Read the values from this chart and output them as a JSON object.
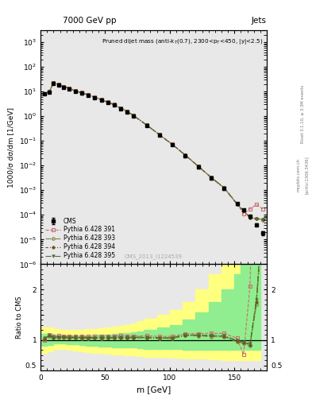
{
  "title_top": "7000 GeV pp",
  "title_right": "Jets",
  "annotation": "Pruned dijet mass (anti-k$_\\mathregular{T}$(0.7), 2300<p$_\\mathregular{T}$<450, |y|<2.5)",
  "watermark": "CMS_2013_I1224539",
  "rivet_label": "Rivet 3.1.10, ≥ 3.3M events",
  "arxiv_label": "[arXiv:1306.3436]",
  "mcplots_label": "mcplots.cern.ch",
  "ylabel_main": "1000/σ dσ/dm [1/GeV]",
  "ylabel_ratio": "Ratio to CMS",
  "xlabel": "m [GeV]",
  "cms_x": [
    3,
    7,
    10,
    14,
    18,
    22,
    27,
    32,
    37,
    42,
    47,
    52,
    57,
    62,
    67,
    72,
    82,
    92,
    102,
    112,
    122,
    132,
    142,
    152,
    157,
    162,
    167,
    172
  ],
  "cms_y": [
    8.0,
    9.5,
    22.0,
    18.0,
    15.0,
    13.0,
    10.0,
    8.5,
    7.0,
    5.5,
    4.5,
    3.5,
    2.8,
    2.0,
    1.5,
    1.0,
    0.42,
    0.17,
    0.068,
    0.024,
    0.0085,
    0.003,
    0.00115,
    0.00028,
    0.000155,
    8.5e-05,
    4e-05,
    1.8e-05
  ],
  "cms_yerr": [
    0.6,
    0.7,
    1.5,
    1.4,
    1.2,
    1.0,
    0.85,
    0.7,
    0.55,
    0.42,
    0.35,
    0.28,
    0.22,
    0.16,
    0.12,
    0.08,
    0.033,
    0.013,
    0.005,
    0.002,
    0.0007,
    0.00025,
    0.0001,
    2.5e-05,
    1.5e-05,
    1e-05,
    5e-06,
    3e-06
  ],
  "py391_x": [
    3,
    7,
    10,
    14,
    18,
    22,
    27,
    32,
    37,
    42,
    47,
    52,
    57,
    62,
    67,
    72,
    82,
    92,
    102,
    112,
    122,
    132,
    142,
    152,
    157,
    162,
    167,
    172
  ],
  "py391_y": [
    8.0,
    10.5,
    23.5,
    19.5,
    16.2,
    14.0,
    10.8,
    9.1,
    7.5,
    5.9,
    4.85,
    3.78,
    3.02,
    2.17,
    1.62,
    1.08,
    0.455,
    0.182,
    0.073,
    0.027,
    0.0096,
    0.0034,
    0.0013,
    0.00029,
    0.00011,
    0.000175,
    0.00026,
    0.000175
  ],
  "py393_x": [
    3,
    7,
    10,
    14,
    18,
    22,
    27,
    32,
    37,
    42,
    47,
    52,
    57,
    62,
    67,
    72,
    82,
    92,
    102,
    112,
    122,
    132,
    142,
    152,
    157,
    162,
    167,
    172
  ],
  "py393_y": [
    8.2,
    10.2,
    22.8,
    18.8,
    15.6,
    13.5,
    10.4,
    8.8,
    7.2,
    5.7,
    4.65,
    3.63,
    2.9,
    2.08,
    1.56,
    1.04,
    0.437,
    0.175,
    0.07,
    0.026,
    0.0092,
    0.0032,
    0.00122,
    0.00027,
    0.000145,
    7.5e-05,
    6.8e-05,
    6.2e-05
  ],
  "py394_x": [
    3,
    7,
    10,
    14,
    18,
    22,
    27,
    32,
    37,
    42,
    47,
    52,
    57,
    62,
    67,
    72,
    82,
    92,
    102,
    112,
    122,
    132,
    142,
    152,
    157,
    162,
    167,
    172
  ],
  "py394_y": [
    8.1,
    10.3,
    23.0,
    19.0,
    15.8,
    13.6,
    10.5,
    8.9,
    7.3,
    5.75,
    4.7,
    3.66,
    2.93,
    2.1,
    1.57,
    1.05,
    0.441,
    0.177,
    0.0708,
    0.0263,
    0.0093,
    0.00325,
    0.00123,
    0.000274,
    0.000148,
    7.7e-05,
    7e-05,
    6.4e-05
  ],
  "py395_x": [
    3,
    7,
    10,
    14,
    18,
    22,
    27,
    32,
    37,
    42,
    47,
    52,
    57,
    62,
    67,
    72,
    82,
    92,
    102,
    112,
    122,
    132,
    142,
    152,
    157,
    162,
    167,
    172
  ],
  "py395_y": [
    8.3,
    10.4,
    23.2,
    19.2,
    16.0,
    13.7,
    10.6,
    8.95,
    7.35,
    5.78,
    4.73,
    3.69,
    2.95,
    2.12,
    1.58,
    1.06,
    0.444,
    0.178,
    0.0712,
    0.0265,
    0.00935,
    0.00328,
    0.00125,
    0.000278,
    0.00015,
    7.9e-05,
    7.2e-05,
    6.6e-05
  ],
  "band_x_edges": [
    0,
    5,
    10,
    15,
    20,
    25,
    30,
    35,
    40,
    45,
    50,
    55,
    60,
    65,
    70,
    75,
    80,
    90,
    100,
    110,
    120,
    130,
    140,
    150,
    155,
    160,
    165,
    170,
    175
  ],
  "band_green_lo": [
    0.88,
    0.9,
    0.93,
    0.93,
    0.92,
    0.91,
    0.9,
    0.89,
    0.88,
    0.87,
    0.87,
    0.86,
    0.86,
    0.85,
    0.85,
    0.84,
    0.83,
    0.83,
    0.82,
    0.81,
    0.81,
    0.81,
    0.8,
    0.8,
    0.8,
    0.8,
    0.8,
    0.8
  ],
  "band_green_hi": [
    1.12,
    1.12,
    1.1,
    1.09,
    1.09,
    1.09,
    1.09,
    1.09,
    1.1,
    1.1,
    1.11,
    1.12,
    1.13,
    1.14,
    1.15,
    1.17,
    1.2,
    1.25,
    1.3,
    1.4,
    1.55,
    1.75,
    2.0,
    2.3,
    2.5,
    2.6,
    2.6,
    2.6
  ],
  "band_yellow_lo": [
    0.75,
    0.78,
    0.82,
    0.82,
    0.8,
    0.79,
    0.77,
    0.76,
    0.75,
    0.74,
    0.73,
    0.72,
    0.71,
    0.7,
    0.69,
    0.68,
    0.67,
    0.66,
    0.65,
    0.64,
    0.63,
    0.62,
    0.6,
    0.6,
    0.6,
    0.6,
    0.6,
    0.6
  ],
  "band_yellow_hi": [
    1.25,
    1.25,
    1.22,
    1.2,
    1.2,
    1.2,
    1.2,
    1.21,
    1.22,
    1.23,
    1.24,
    1.26,
    1.28,
    1.3,
    1.33,
    1.37,
    1.42,
    1.5,
    1.6,
    1.75,
    2.0,
    2.3,
    2.65,
    3.0,
    3.1,
    3.1,
    3.1,
    3.1
  ],
  "xlim": [
    0,
    175
  ],
  "ylim_main_log": [
    1e-06,
    3000
  ],
  "ylim_ratio": [
    0.4,
    2.5
  ],
  "color_cms": "#000000",
  "color_391": "#C87070",
  "color_393": "#808040",
  "color_394": "#7A4A20",
  "color_395": "#507030",
  "color_green_band": "#90EE90",
  "color_yellow_band": "#FFFF80",
  "bg_color": "#e8e8e8"
}
